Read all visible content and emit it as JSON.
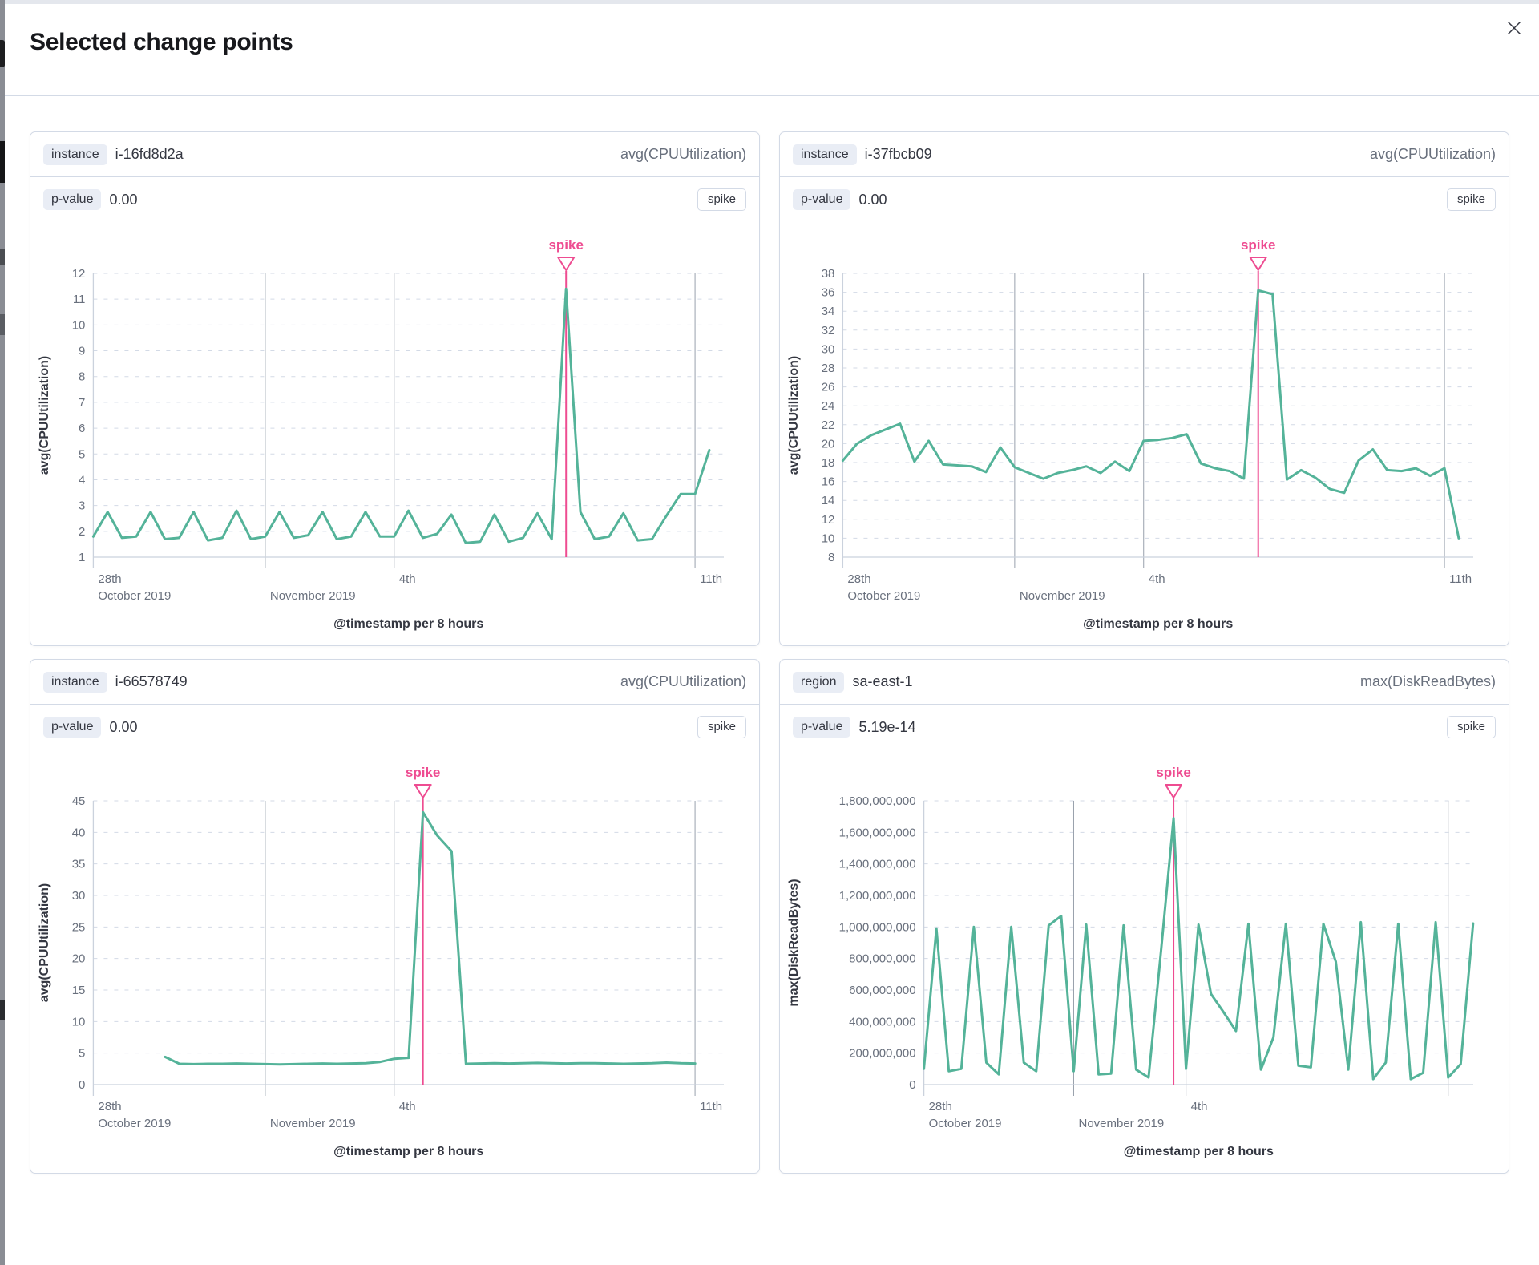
{
  "modal": {
    "title": "Selected change points"
  },
  "colors": {
    "line_green": "#54b399",
    "annotation_pink": "#ee4c91",
    "grid_dashed": "#d3dae6",
    "grid_vertical": "#99a1ac",
    "axis_line": "#cbd2dd",
    "tick_text": "#69707d",
    "title_text": "#343741",
    "panel_border": "#d3dae6",
    "badge_bg": "#e9edf5"
  },
  "panels": [
    {
      "field_badge": "instance",
      "field_value": "i-16fd8d2a",
      "metric_label": "avg(CPUUtilization)",
      "p_value_label": "p-value",
      "p_value": "0.00",
      "change_type": "spike"
    },
    {
      "field_badge": "instance",
      "field_value": "i-37fbcb09",
      "metric_label": "avg(CPUUtilization)",
      "p_value_label": "p-value",
      "p_value": "0.00",
      "change_type": "spike"
    },
    {
      "field_badge": "instance",
      "field_value": "i-66578749",
      "metric_label": "avg(CPUUtilization)",
      "p_value_label": "p-value",
      "p_value": "0.00",
      "change_type": "spike"
    },
    {
      "field_badge": "region",
      "field_value": "sa-east-1",
      "metric_label": "max(DiskReadBytes)",
      "p_value_label": "p-value",
      "p_value": "5.19e-14",
      "change_type": "spike"
    }
  ],
  "chart_data": [
    {
      "type": "line",
      "series_ref": "i-16fd8d2a",
      "y_axis_label": "avg(CPUUtilization)",
      "x_axis_label": "@timestamp per 8 hours",
      "y_min": 1,
      "y_max": 12,
      "y_step": 1,
      "y_label_format": "plain",
      "x_domain_days": 14.67,
      "x_start_day": 0,
      "bucket_days": 0.33333,
      "x_ticks": [
        {
          "day": 0,
          "line1": "28th",
          "line2": "October 2019",
          "grid": false
        },
        {
          "day": 4,
          "line1": "",
          "line2": "November 2019",
          "grid": true
        },
        {
          "day": 7,
          "line1": "4th",
          "line2": "",
          "grid": true
        },
        {
          "day": 14,
          "line1": "11th",
          "line2": "",
          "grid": true
        }
      ],
      "annotation": {
        "label": "spike",
        "type": "spike",
        "index": 33
      },
      "values": [
        1.8,
        2.75,
        1.75,
        1.8,
        2.75,
        1.7,
        1.75,
        2.75,
        1.65,
        1.75,
        2.8,
        1.7,
        1.8,
        2.75,
        1.75,
        1.85,
        2.75,
        1.7,
        1.8,
        2.75,
        1.8,
        1.8,
        2.8,
        1.75,
        1.9,
        2.65,
        1.55,
        1.6,
        2.65,
        1.6,
        1.75,
        2.7,
        1.7,
        11.4,
        2.75,
        1.7,
        1.8,
        2.7,
        1.65,
        1.7,
        2.6,
        3.45,
        3.45,
        5.15
      ]
    },
    {
      "type": "line",
      "series_ref": "i-37fbcb09",
      "y_axis_label": "avg(CPUUtilization)",
      "x_axis_label": "@timestamp per 8 hours",
      "y_min": 8,
      "y_max": 38,
      "y_step": 2,
      "y_label_format": "plain",
      "x_domain_days": 14.67,
      "x_start_day": 0,
      "bucket_days": 0.33333,
      "x_ticks": [
        {
          "day": 0,
          "line1": "28th",
          "line2": "October 2019",
          "grid": false
        },
        {
          "day": 4,
          "line1": "",
          "line2": "November 2019",
          "grid": true
        },
        {
          "day": 7,
          "line1": "4th",
          "line2": "",
          "grid": true
        },
        {
          "day": 14,
          "line1": "11th",
          "line2": "",
          "grid": true
        }
      ],
      "annotation": {
        "label": "spike",
        "type": "spike",
        "index": 29
      },
      "values": [
        18.2,
        20.0,
        20.9,
        21.5,
        22.1,
        18.1,
        20.3,
        17.8,
        17.7,
        17.6,
        17.0,
        19.6,
        17.5,
        16.9,
        16.3,
        16.9,
        17.2,
        17.6,
        16.9,
        18.1,
        17.1,
        20.3,
        20.4,
        20.6,
        21.0,
        17.9,
        17.4,
        17.1,
        16.3,
        36.2,
        35.8,
        16.2,
        17.2,
        16.4,
        15.2,
        14.8,
        18.2,
        19.4,
        17.2,
        17.1,
        17.4,
        16.6,
        17.4,
        10.0
      ]
    },
    {
      "type": "line",
      "series_ref": "i-66578749",
      "y_axis_label": "avg(CPUUtilization)",
      "x_axis_label": "@timestamp per 8 hours",
      "y_min": 0,
      "y_max": 45,
      "y_step": 5,
      "y_label_format": "plain",
      "x_domain_days": 14.67,
      "x_start_day": 1.67,
      "bucket_days": 0.33333,
      "x_ticks": [
        {
          "day": 0,
          "line1": "28th",
          "line2": "October 2019",
          "grid": false
        },
        {
          "day": 4,
          "line1": "",
          "line2": "November 2019",
          "grid": true
        },
        {
          "day": 7,
          "line1": "4th",
          "line2": "",
          "grid": true
        },
        {
          "day": 14,
          "line1": "11th",
          "line2": "",
          "grid": true
        }
      ],
      "annotation": {
        "label": "spike",
        "type": "spike",
        "index": 18
      },
      "values": [
        4.4,
        3.3,
        3.25,
        3.3,
        3.3,
        3.35,
        3.3,
        3.25,
        3.2,
        3.25,
        3.3,
        3.35,
        3.3,
        3.35,
        3.4,
        3.6,
        4.1,
        4.25,
        43.2,
        39.5,
        37.0,
        3.3,
        3.35,
        3.4,
        3.35,
        3.4,
        3.45,
        3.4,
        3.35,
        3.4,
        3.4,
        3.35,
        3.3,
        3.35,
        3.4,
        3.5,
        3.4,
        3.35
      ]
    },
    {
      "type": "line",
      "series_ref": "sa-east-1",
      "y_axis_label": "max(DiskReadBytes)",
      "x_axis_label": "@timestamp per 8 hours",
      "y_min": 0,
      "y_max": 1800000000,
      "y_step": 200000000,
      "y_label_format": "comma",
      "x_domain_days": 14.67,
      "x_start_day": 0,
      "bucket_days": 0.33333,
      "x_ticks": [
        {
          "day": 0,
          "line1": "28th",
          "line2": "October 2019",
          "grid": false
        },
        {
          "day": 4,
          "line1": "",
          "line2": "November 2019",
          "grid": true
        },
        {
          "day": 7,
          "line1": "4th",
          "line2": "",
          "grid": true
        },
        {
          "day": 14,
          "line1": "",
          "line2": "",
          "grid": true
        }
      ],
      "annotation": {
        "label": "spike",
        "type": "spike",
        "index": 20
      },
      "values": [
        100000000,
        990000000,
        85000000,
        100000000,
        1000000000,
        140000000,
        65000000,
        1000000000,
        140000000,
        85000000,
        1010000000,
        1070000000,
        85000000,
        1015000000,
        65000000,
        70000000,
        1010000000,
        95000000,
        45000000,
        850000000,
        1690000000,
        100000000,
        1015000000,
        575000000,
        460000000,
        340000000,
        1020000000,
        95000000,
        300000000,
        1020000000,
        120000000,
        110000000,
        1020000000,
        780000000,
        95000000,
        1030000000,
        35000000,
        140000000,
        1020000000,
        35000000,
        75000000,
        1030000000,
        45000000,
        130000000,
        1022000000
      ]
    }
  ]
}
